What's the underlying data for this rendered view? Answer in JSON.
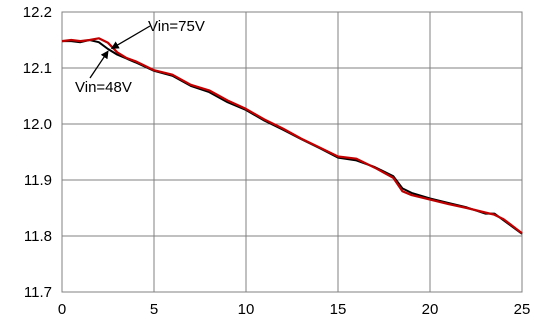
{
  "chart_data": {
    "type": "line",
    "x_ticks": [
      0,
      5,
      10,
      15,
      20,
      25
    ],
    "y_ticks": [
      "11.7",
      "11.8",
      "11.9",
      "12.0",
      "12.1",
      "12.2"
    ],
    "xlim": [
      0,
      25
    ],
    "ylim": [
      11.7,
      12.2
    ],
    "grid": true,
    "legend": "none",
    "series": [
      {
        "name": "Vin=48V",
        "color": "#000000",
        "x": [
          0,
          0.5,
          1,
          1.5,
          2,
          2.5,
          3,
          3.5,
          4,
          5,
          6,
          7,
          8,
          9,
          10,
          11,
          12,
          13,
          14,
          15,
          16,
          17,
          18,
          18.5,
          19,
          20,
          21,
          22,
          23,
          23.5,
          24,
          25
        ],
        "y": [
          12.148,
          12.148,
          12.146,
          12.15,
          12.146,
          12.134,
          12.124,
          12.117,
          12.11,
          12.095,
          12.086,
          12.068,
          12.057,
          12.039,
          12.025,
          12.006,
          11.99,
          11.973,
          11.957,
          11.94,
          11.935,
          11.923,
          11.907,
          11.885,
          11.877,
          11.867,
          11.859,
          11.851,
          11.84,
          11.84,
          11.828,
          11.804
        ]
      },
      {
        "name": "Vin=75V",
        "color": "#c00000",
        "x": [
          0,
          0.5,
          1,
          1.5,
          2,
          2.5,
          3,
          3.5,
          4,
          5,
          6,
          7,
          8,
          9,
          10,
          11,
          12,
          13,
          14,
          15,
          16,
          17,
          18,
          18.5,
          19,
          20,
          21,
          22,
          23,
          23.5,
          24,
          25
        ],
        "y": [
          12.148,
          12.15,
          12.148,
          12.15,
          12.153,
          12.145,
          12.128,
          12.118,
          12.112,
          12.096,
          12.088,
          12.07,
          12.06,
          12.042,
          12.027,
          12.008,
          11.992,
          11.974,
          11.958,
          11.942,
          11.938,
          11.922,
          11.904,
          11.88,
          11.873,
          11.865,
          11.857,
          11.85,
          11.842,
          11.838,
          11.83,
          11.805
        ]
      }
    ],
    "annotations": [
      {
        "label": "Vin=75V",
        "series": "Vin=75V",
        "x": 2.7,
        "y": 12.135
      },
      {
        "label": "Vin=48V",
        "series": "Vin=48V",
        "x": 2.5,
        "y": 12.13
      }
    ]
  }
}
